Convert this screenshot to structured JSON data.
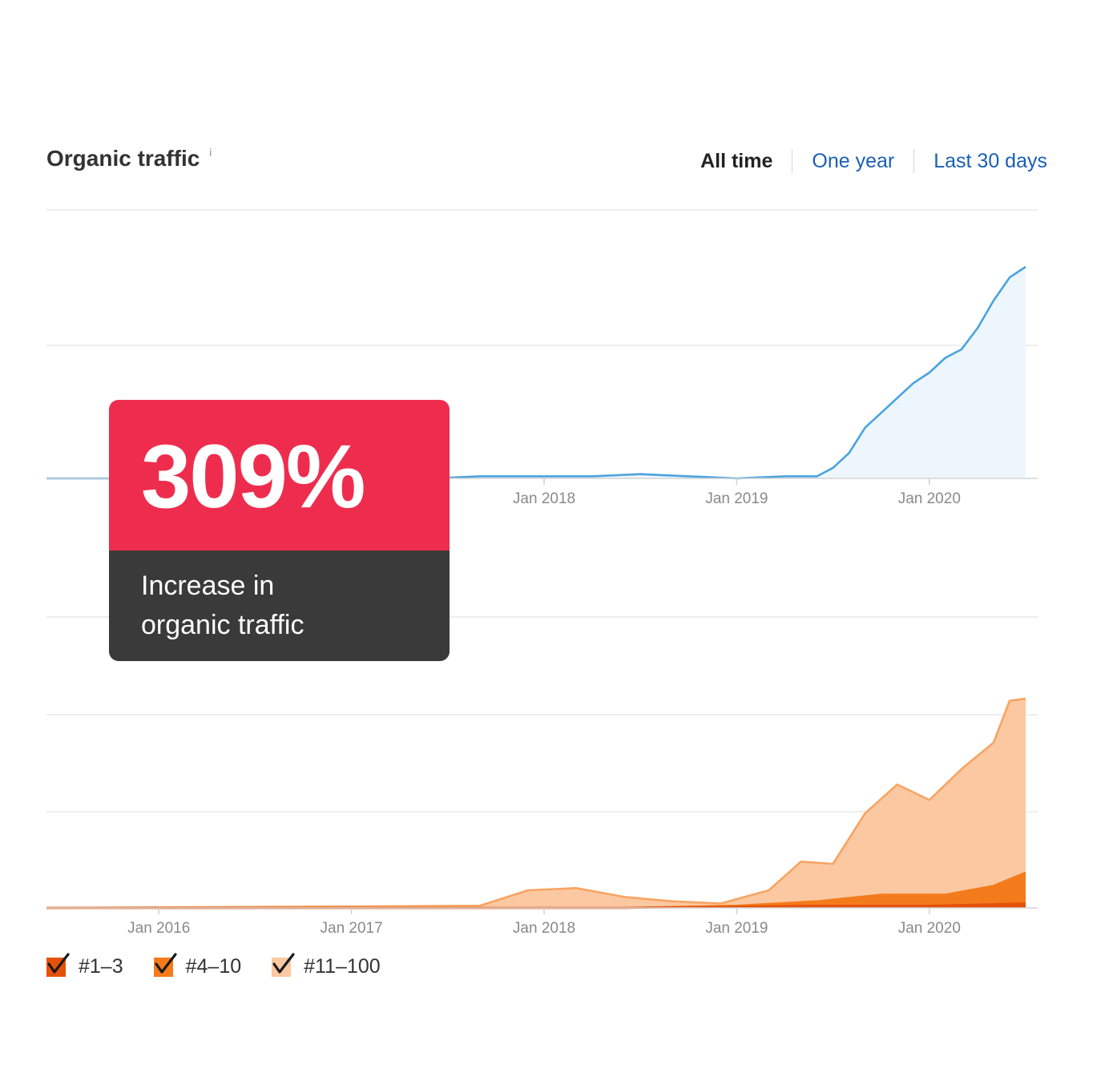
{
  "header": {
    "title": "Organic traffic",
    "info_icon": "info-icon",
    "info_glyph": "i",
    "ranges": [
      {
        "label": "All time",
        "active": true
      },
      {
        "label": "One year",
        "active": false
      },
      {
        "label": "Last 30 days",
        "active": false
      }
    ]
  },
  "callout": {
    "value": "309%",
    "description_line1": "Increase in",
    "description_line2": "organic traffic"
  },
  "chart_data": [
    {
      "type": "area",
      "title": "Organic traffic",
      "x_ticks": [
        "Jan 2018",
        "Jan 2019",
        "Jan 2020"
      ],
      "x_range": [
        "2015-06",
        "2020-07"
      ],
      "ylim": [
        0,
        100
      ],
      "grid": true,
      "color": "#4aa3df",
      "series": [
        {
          "x": [
            "2015-06",
            "2017-06",
            "2017-09",
            "2018-01",
            "2018-04",
            "2018-07",
            "2018-10",
            "2019-01",
            "2019-04",
            "2019-06",
            "2019-07",
            "2019-08",
            "2019-09",
            "2019-10",
            "2019-11",
            "2019-12",
            "2020-01",
            "2020-02",
            "2020-03",
            "2020-04",
            "2020-05",
            "2020-06",
            "2020-07"
          ],
          "values": [
            0,
            0,
            1,
            1,
            1,
            2,
            1,
            0,
            1,
            1,
            5,
            12,
            24,
            31,
            38,
            45,
            50,
            57,
            61,
            71,
            84,
            95,
            100
          ]
        }
      ]
    },
    {
      "type": "area",
      "x_ticks": [
        "Jan 2016",
        "Jan 2017",
        "Jan 2018",
        "Jan 2019",
        "Jan 2020"
      ],
      "x_range": [
        "2015-06",
        "2020-07"
      ],
      "ylim": [
        0,
        100
      ],
      "grid": true,
      "legend_position": "bottom-left",
      "series": [
        {
          "name": "#11–100",
          "color": "#fbc8a1",
          "x": [
            "2015-06",
            "2017-09",
            "2017-12",
            "2018-03",
            "2018-06",
            "2018-09",
            "2018-12",
            "2019-03",
            "2019-05",
            "2019-07",
            "2019-09",
            "2019-11",
            "2020-01",
            "2020-03",
            "2020-05",
            "2020-06",
            "2020-07"
          ],
          "values": [
            0,
            1,
            8,
            9,
            5,
            3,
            2,
            8,
            21,
            20,
            43,
            56,
            49,
            63,
            75,
            94,
            95
          ]
        },
        {
          "name": "#4–10",
          "color": "#f47b1c",
          "x": [
            "2015-06",
            "2018-06",
            "2019-01",
            "2019-06",
            "2019-10",
            "2020-02",
            "2020-05",
            "2020-07"
          ],
          "values": [
            0,
            0,
            1,
            3,
            6,
            6,
            10,
            16
          ]
        },
        {
          "name": "#1–3",
          "color": "#e5510a",
          "x": [
            "2015-06",
            "2018-06",
            "2019-06",
            "2020-01",
            "2020-07"
          ],
          "values": [
            0,
            0,
            1,
            1,
            2
          ]
        }
      ]
    }
  ]
}
